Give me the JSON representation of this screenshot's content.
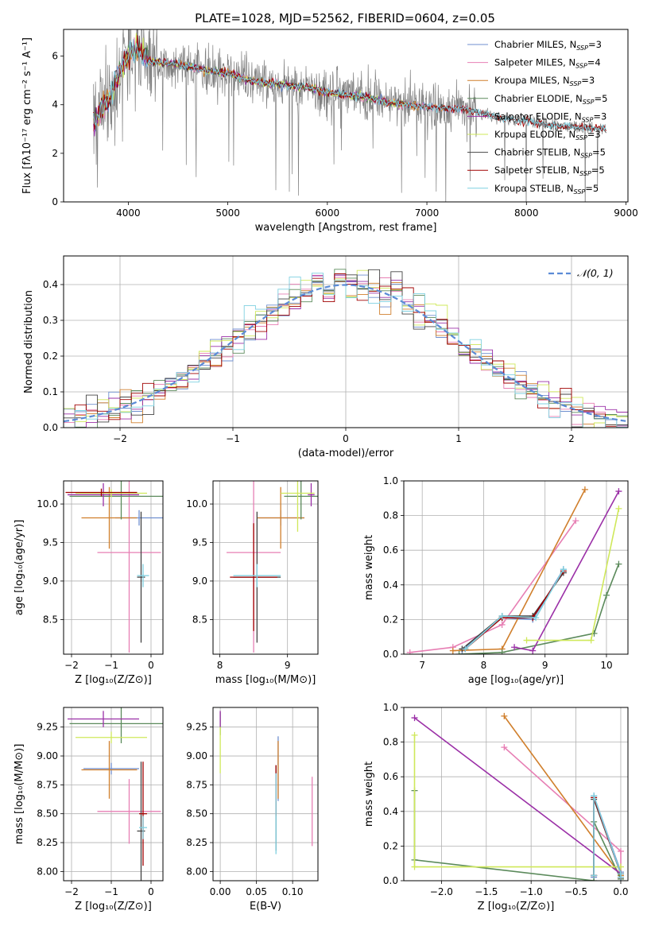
{
  "figure_title": "PLATE=1028, MJD=52562, FIBERID=0604, z=0.05",
  "colors": {
    "Chabrier MILES": "#6f8fcf",
    "Salpeter MILES": "#e77fb4",
    "Kroupa MILES": "#d07f2c",
    "Chabrier ELODIE": "#5b8a5b",
    "Salpeter ELODIE": "#9b30a7",
    "Kroupa ELODIE": "#cfe85a",
    "Chabrier STELIB": "#444444",
    "Salpeter STELIB": "#a00000",
    "Kroupa STELIB": "#7fd0e0",
    "data": "#808080",
    "gaussian": "#5b8bd6"
  },
  "chart_data": [
    {
      "id": "spectrum",
      "type": "line",
      "xlabel": "wavelength [Angstrom, rest frame]",
      "ylabel": "Flux [fλ10⁻¹⁷ erg cm⁻² s⁻¹ A⁻¹]",
      "xlim": [
        3350,
        9020
      ],
      "ylim": [
        0,
        7.1
      ],
      "xticks": [
        4000,
        5000,
        6000,
        7000,
        8000,
        9000
      ],
      "yticks": [
        0,
        2,
        4,
        6
      ],
      "legend_position": "right",
      "legend": [
        {
          "label": "Chabrier MILES, N",
          "sub": "SSP",
          "suffix": "=3"
        },
        {
          "label": "Salpeter MILES, N",
          "sub": "SSP",
          "suffix": "=4"
        },
        {
          "label": "Kroupa MILES, N",
          "sub": "SSP",
          "suffix": "=3"
        },
        {
          "label": "Chabrier ELODIE, N",
          "sub": "SSP",
          "suffix": "=5"
        },
        {
          "label": "Salpeter ELODIE, N",
          "sub": "SSP",
          "suffix": "=3"
        },
        {
          "label": "Kroupa ELODIE, N",
          "sub": "SSP",
          "suffix": "=3"
        },
        {
          "label": "Chabrier STELIB, N",
          "sub": "SSP",
          "suffix": "=5"
        },
        {
          "label": "Salpeter STELIB, N",
          "sub": "SSP",
          "suffix": "=5"
        },
        {
          "label": "Kroupa STELIB, N",
          "sub": "SSP",
          "suffix": "=5"
        }
      ],
      "continuum_x": [
        3650,
        3700,
        3800,
        3900,
        4000,
        4100,
        4200,
        4400,
        4600,
        4800,
        5000,
        5200,
        5400,
        5600,
        5800,
        6000,
        6200,
        6400,
        6600,
        6800,
        7000,
        7200,
        7400,
        7600,
        7800,
        8000,
        8200,
        8400,
        8600,
        8800
      ],
      "continuum_y": [
        3.3,
        3.6,
        4.2,
        5.2,
        6.1,
        6.4,
        5.8,
        5.7,
        5.6,
        5.4,
        5.3,
        5.0,
        4.9,
        4.8,
        4.7,
        4.5,
        4.4,
        4.3,
        4.1,
        4.0,
        3.9,
        3.85,
        3.8,
        3.6,
        3.4,
        3.3,
        3.2,
        3.1,
        3.05,
        3.0
      ]
    },
    {
      "id": "residuals",
      "type": "line",
      "xlabel": "(data-model)/error",
      "ylabel": "Normed distribution",
      "xlim": [
        -2.5,
        2.5
      ],
      "ylim": [
        0,
        0.48
      ],
      "xticks": [
        -2,
        -1,
        0,
        1,
        2
      ],
      "yticks": [
        0.0,
        0.1,
        0.2,
        0.3,
        0.4
      ],
      "legend_position": "top-right",
      "legend_label": "𝒩(0, 1)",
      "bin_width": 0.1
    },
    {
      "id": "age_vs_Z",
      "type": "scatter",
      "xlabel": "Z [log₁₀(Z/Z⊙)]",
      "ylabel": "age  [log₁₀(age/yr)]",
      "xlim": [
        -2.2,
        0.3
      ],
      "ylim": [
        8.05,
        10.3
      ],
      "xticks": [
        -2,
        -1,
        0
      ],
      "yticks": [
        8.5,
        9.0,
        9.5,
        10.0
      ],
      "points": [
        {
          "series": "Chabrier MILES",
          "x": -0.3,
          "y": 9.82,
          "xerr": 0.6,
          "yerr": 0.1
        },
        {
          "series": "Salpeter MILES",
          "x": -0.55,
          "y": 9.37,
          "xerr": 0.8,
          "yerr": 1.3
        },
        {
          "series": "Kroupa MILES",
          "x": -1.05,
          "y": 9.82,
          "xerr": 0.7,
          "yerr": 0.4
        },
        {
          "series": "Chabrier ELODIE",
          "x": -0.75,
          "y": 10.1,
          "xerr": 1.3,
          "yerr": 0.3
        },
        {
          "series": "Salpeter ELODIE",
          "x": -1.2,
          "y": 10.12,
          "xerr": 0.9,
          "yerr": 0.15
        },
        {
          "series": "Kroupa ELODIE",
          "x": -1.0,
          "y": 10.14,
          "xerr": 0.9,
          "yerr": 0.05
        },
        {
          "series": "Chabrier STELIB",
          "x": -0.25,
          "y": 9.05,
          "xerr": 0.1,
          "yerr": 0.85
        },
        {
          "series": "Salpeter STELIB",
          "x": -1.25,
          "y": 10.15,
          "xerr": 0.9,
          "yerr": 0.05
        },
        {
          "series": "Kroupa STELIB",
          "x": -0.2,
          "y": 9.07,
          "xerr": 0.15,
          "yerr": 0.15
        }
      ]
    },
    {
      "id": "age_vs_mass",
      "type": "scatter",
      "xlabel": "mass [log₁₀(M/M⊙)]",
      "ylabel": "",
      "xlim": [
        7.9,
        9.45
      ],
      "ylim": [
        8.05,
        10.3
      ],
      "xticks": [
        8,
        9
      ],
      "yticks": [
        8.5,
        9.0,
        9.5,
        10.0
      ],
      "points": [
        {
          "series": "Chabrier MILES",
          "x": 8.9,
          "y": 9.82,
          "xerr": 0.35,
          "yerr": 0.1
        },
        {
          "series": "Salpeter MILES",
          "x": 8.5,
          "y": 9.37,
          "xerr": 0.4,
          "yerr": 1.3
        },
        {
          "series": "Kroupa MILES",
          "x": 8.9,
          "y": 9.82,
          "xerr": 0.35,
          "yerr": 0.4
        },
        {
          "series": "Chabrier ELODIE",
          "x": 9.2,
          "y": 10.1,
          "xerr": 0.25,
          "yerr": 0.3
        },
        {
          "series": "Salpeter ELODIE",
          "x": 9.35,
          "y": 10.12,
          "xerr": 0.05,
          "yerr": 0.15
        },
        {
          "series": "Kroupa ELODIE",
          "x": 9.15,
          "y": 10.14,
          "xerr": 0.25,
          "yerr": 0.5
        },
        {
          "series": "Chabrier STELIB",
          "x": 8.55,
          "y": 9.05,
          "xerr": 0.35,
          "yerr": 0.85
        },
        {
          "series": "Salpeter STELIB",
          "x": 8.5,
          "y": 9.05,
          "xerr": 0.35,
          "yerr": 0.7
        },
        {
          "series": "Kroupa STELIB",
          "x": 8.55,
          "y": 9.07,
          "xerr": 0.35,
          "yerr": 0.15
        }
      ]
    },
    {
      "id": "massweight_vs_age",
      "type": "line",
      "xlabel": "age  [log₁₀(age/yr)]",
      "ylabel": "mass weight",
      "xlim": [
        6.7,
        10.35
      ],
      "ylim": [
        0,
        1.0
      ],
      "xticks": [
        7,
        8,
        9,
        10
      ],
      "yticks": [
        0.0,
        0.2,
        0.4,
        0.6,
        0.8,
        1.0
      ],
      "series": [
        {
          "name": "Chabrier MILES",
          "x": [
            7.65,
            8.3,
            8.8,
            9.3
          ],
          "y": [
            0.02,
            0.21,
            0.2,
            0.49
          ]
        },
        {
          "name": "Salpeter MILES",
          "x": [
            6.8,
            7.5,
            8.3,
            9.5
          ],
          "y": [
            0.01,
            0.04,
            0.17,
            0.77
          ]
        },
        {
          "name": "Kroupa MILES",
          "x": [
            7.5,
            8.3,
            9.65
          ],
          "y": [
            0.02,
            0.03,
            0.95
          ]
        },
        {
          "name": "Chabrier ELODIE",
          "x": [
            7.6,
            8.3,
            9.8,
            10.0,
            10.2
          ],
          "y": [
            0.0,
            0.01,
            0.12,
            0.34,
            0.52
          ]
        },
        {
          "name": "Salpeter ELODIE",
          "x": [
            8.5,
            8.8,
            10.2
          ],
          "y": [
            0.04,
            0.02,
            0.94
          ]
        },
        {
          "name": "Kroupa ELODIE",
          "x": [
            8.7,
            9.75,
            10.2
          ],
          "y": [
            0.08,
            0.08,
            0.84
          ]
        },
        {
          "name": "Chabrier STELIB",
          "x": [
            7.65,
            8.3,
            8.8,
            9.3
          ],
          "y": [
            0.03,
            0.22,
            0.22,
            0.47
          ]
        },
        {
          "name": "Salpeter STELIB",
          "x": [
            7.7,
            8.3,
            8.8,
            9.3
          ],
          "y": [
            0.03,
            0.21,
            0.21,
            0.48
          ]
        },
        {
          "name": "Kroupa STELIB",
          "x": [
            7.7,
            8.3,
            8.85,
            9.3
          ],
          "y": [
            0.03,
            0.22,
            0.21,
            0.49
          ]
        }
      ]
    },
    {
      "id": "mass_vs_Z",
      "type": "scatter",
      "xlabel": "Z [log₁₀(Z/Z⊙)]",
      "ylabel": "mass [log₁₀(M/M⊙)]",
      "xlim": [
        -2.2,
        0.3
      ],
      "ylim": [
        7.92,
        9.42
      ],
      "xticks": [
        -2,
        -1,
        0
      ],
      "yticks": [
        8.0,
        8.25,
        8.5,
        8.75,
        9.0,
        9.25
      ],
      "points": [
        {
          "series": "Chabrier MILES",
          "x": -1.0,
          "y": 8.89,
          "xerr": 0.7,
          "yerr": 0.05
        },
        {
          "series": "Salpeter MILES",
          "x": -0.55,
          "y": 8.52,
          "xerr": 0.8,
          "yerr": 0.28
        },
        {
          "series": "Kroupa MILES",
          "x": -1.05,
          "y": 8.88,
          "xerr": 0.7,
          "yerr": 0.25
        },
        {
          "series": "Chabrier ELODIE",
          "x": -0.75,
          "y": 9.28,
          "xerr": 1.3,
          "yerr": 0.17
        },
        {
          "series": "Salpeter ELODIE",
          "x": -1.2,
          "y": 9.32,
          "xerr": 0.9,
          "yerr": 0.07
        },
        {
          "series": "Kroupa ELODIE",
          "x": -1.0,
          "y": 9.16,
          "xerr": 0.9,
          "yerr": 0.05
        },
        {
          "series": "Chabrier STELIB",
          "x": -0.25,
          "y": 8.35,
          "xerr": 0.1,
          "yerr": 0.6
        },
        {
          "series": "Salpeter STELIB",
          "x": -0.2,
          "y": 8.5,
          "xerr": 0.1,
          "yerr": 0.45
        },
        {
          "series": "Kroupa STELIB",
          "x": -0.2,
          "y": 8.38,
          "xerr": 0.1,
          "yerr": 0.1
        }
      ]
    },
    {
      "id": "mass_vs_EBV",
      "type": "scatter",
      "xlabel": "E(B-V)",
      "ylabel": "",
      "xlim": [
        -0.01,
        0.135
      ],
      "ylim": [
        7.92,
        9.42
      ],
      "xticks": [
        0.0,
        0.05,
        0.1
      ],
      "yticks": [
        8.0,
        8.25,
        8.5,
        8.75,
        9.0,
        9.25
      ],
      "points": [
        {
          "series": "Chabrier MILES",
          "x": 0.08,
          "y": 8.89,
          "xerr": 0,
          "yerr": 0.28
        },
        {
          "series": "Salpeter MILES",
          "x": 0.127,
          "y": 8.52,
          "xerr": 0,
          "yerr": 0.3
        },
        {
          "series": "Kroupa MILES",
          "x": 0.08,
          "y": 8.88,
          "xerr": 0,
          "yerr": 0.25
        },
        {
          "series": "Chabrier ELODIE",
          "x": 0.0,
          "y": 9.28,
          "xerr": 0,
          "yerr": 0.1
        },
        {
          "series": "Salpeter ELODIE",
          "x": 0.0,
          "y": 9.32,
          "xerr": 0,
          "yerr": 0.07
        },
        {
          "series": "Kroupa ELODIE",
          "x": 0.0,
          "y": 9.05,
          "xerr": 0,
          "yerr": 0.2
        },
        {
          "series": "Chabrier STELIB",
          "x": 0.077,
          "y": 8.55,
          "xerr": 0,
          "yerr": 0.37
        },
        {
          "series": "Salpeter STELIB",
          "x": 0.077,
          "y": 8.7,
          "xerr": 0,
          "yerr": 0.22
        },
        {
          "series": "Kroupa STELIB",
          "x": 0.077,
          "y": 8.5,
          "xerr": 0,
          "yerr": 0.35
        }
      ]
    },
    {
      "id": "massweight_vs_Z",
      "type": "line",
      "xlabel": "Z [log₁₀(Z/Z⊙)]",
      "ylabel": "mass weight",
      "xlim": [
        -2.42,
        0.08
      ],
      "ylim": [
        0,
        1.0
      ],
      "xticks": [
        -2.0,
        -1.5,
        -1.0,
        -0.5,
        0.0
      ],
      "yticks": [
        0.0,
        0.2,
        0.4,
        0.6,
        0.8,
        1.0
      ],
      "series": [
        {
          "name": "Chabrier MILES",
          "x": [
            -0.3,
            -0.3,
            0.0,
            0.0
          ],
          "y": [
            0.02,
            0.49,
            0.05,
            0.03
          ]
        },
        {
          "name": "Salpeter MILES",
          "x": [
            -1.3,
            0.0,
            0.0
          ],
          "y": [
            0.77,
            0.17,
            0.01
          ]
        },
        {
          "name": "Kroupa MILES",
          "x": [
            -1.3,
            0.0,
            0.0
          ],
          "y": [
            0.95,
            0.03,
            0.02
          ]
        },
        {
          "name": "Chabrier ELODIE",
          "x": [
            -2.3,
            -2.3,
            -0.3,
            -0.3,
            0.0
          ],
          "y": [
            0.52,
            0.12,
            0.0,
            0.34,
            0.01
          ]
        },
        {
          "name": "Salpeter ELODIE",
          "x": [
            -2.3,
            0.0,
            0.0
          ],
          "y": [
            0.94,
            0.04,
            0.02
          ]
        },
        {
          "name": "Kroupa ELODIE",
          "x": [
            -2.3,
            -2.3,
            0.0
          ],
          "y": [
            0.84,
            0.08,
            0.08
          ]
        },
        {
          "name": "Chabrier STELIB",
          "x": [
            -0.3,
            -0.3,
            0.0,
            0.0
          ],
          "y": [
            0.03,
            0.47,
            0.04,
            0.02
          ]
        },
        {
          "name": "Salpeter STELIB",
          "x": [
            -0.3,
            -0.3,
            0.0,
            0.0
          ],
          "y": [
            0.03,
            0.48,
            0.04,
            0.02
          ]
        },
        {
          "name": "Kroupa STELIB",
          "x": [
            -0.3,
            -0.3,
            0.0,
            0.0
          ],
          "y": [
            0.03,
            0.49,
            0.04,
            0.02
          ]
        }
      ]
    }
  ]
}
